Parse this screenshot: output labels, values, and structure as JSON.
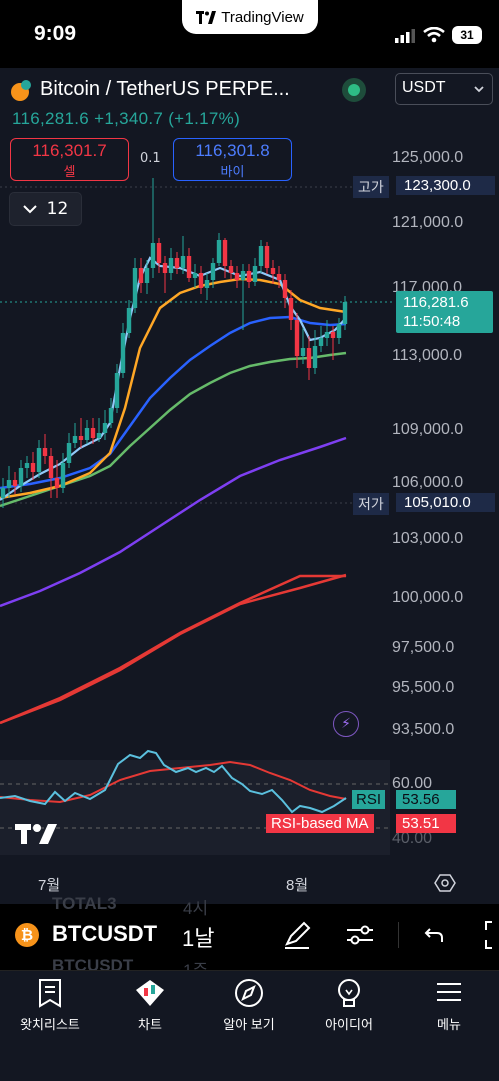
{
  "status": {
    "time": "9:09",
    "app_pill": "TradingView",
    "battery": "31"
  },
  "header": {
    "title": "Bitcoin / TetherUS PERPE...",
    "price": "116,281.6",
    "change": "+1,340.7",
    "change_pct": "(+1.17%)",
    "currency": "USDT"
  },
  "trade": {
    "sell_price": "116,301.7",
    "sell_label": "셀",
    "spread": "0.1",
    "buy_price": "116,301.8",
    "buy_label": "바이"
  },
  "interval": {
    "count": "12"
  },
  "axis": {
    "labels": [
      "125,000.0",
      "121,000.0",
      "117,000.0",
      "113,000.0",
      "109,000.0",
      "106,000.0",
      "103,000.0",
      "100,000.0",
      "97,500.0",
      "95,500.0",
      "93,500.0"
    ],
    "high_key": "고가",
    "high_val": "123,300.0",
    "low_key": "저가",
    "low_val": "105,010.0",
    "current_price": "116,281.6",
    "countdown": "11:50:48"
  },
  "rsi": {
    "axis_60": "60.00",
    "axis_40": "40.00",
    "rsi_label": "RSI",
    "rsi_value": "53.56",
    "ma_label": "RSI-based MA",
    "ma_value": "53.51"
  },
  "months": {
    "m1": "7월",
    "m2": "8월"
  },
  "symbolbar": {
    "symbol": "BTCUSDT",
    "timeframe": "1날",
    "ghost_a": "TOTAL3",
    "ghost_b": "4시",
    "ghost_c": "BTCUSDT",
    "ghost_d": "1주"
  },
  "nav": [
    {
      "label": "왓치리스트",
      "icon": "watchlist-icon"
    },
    {
      "label": "차트",
      "icon": "chart-icon"
    },
    {
      "label": "알아 보기",
      "icon": "compass-icon"
    },
    {
      "label": "아이디어",
      "icon": "lightbulb-icon"
    },
    {
      "label": "메뉴",
      "icon": "menu-icon"
    }
  ],
  "colors": {
    "up": "#26a69a",
    "down": "#f23645",
    "ma_fast": "#90caf9",
    "ma_orange": "#ffa726",
    "ma_blue": "#2962ff",
    "ma_green": "#66bb6a",
    "ma_purple": "#7e3ff2",
    "ma_red": "#e53935"
  }
}
